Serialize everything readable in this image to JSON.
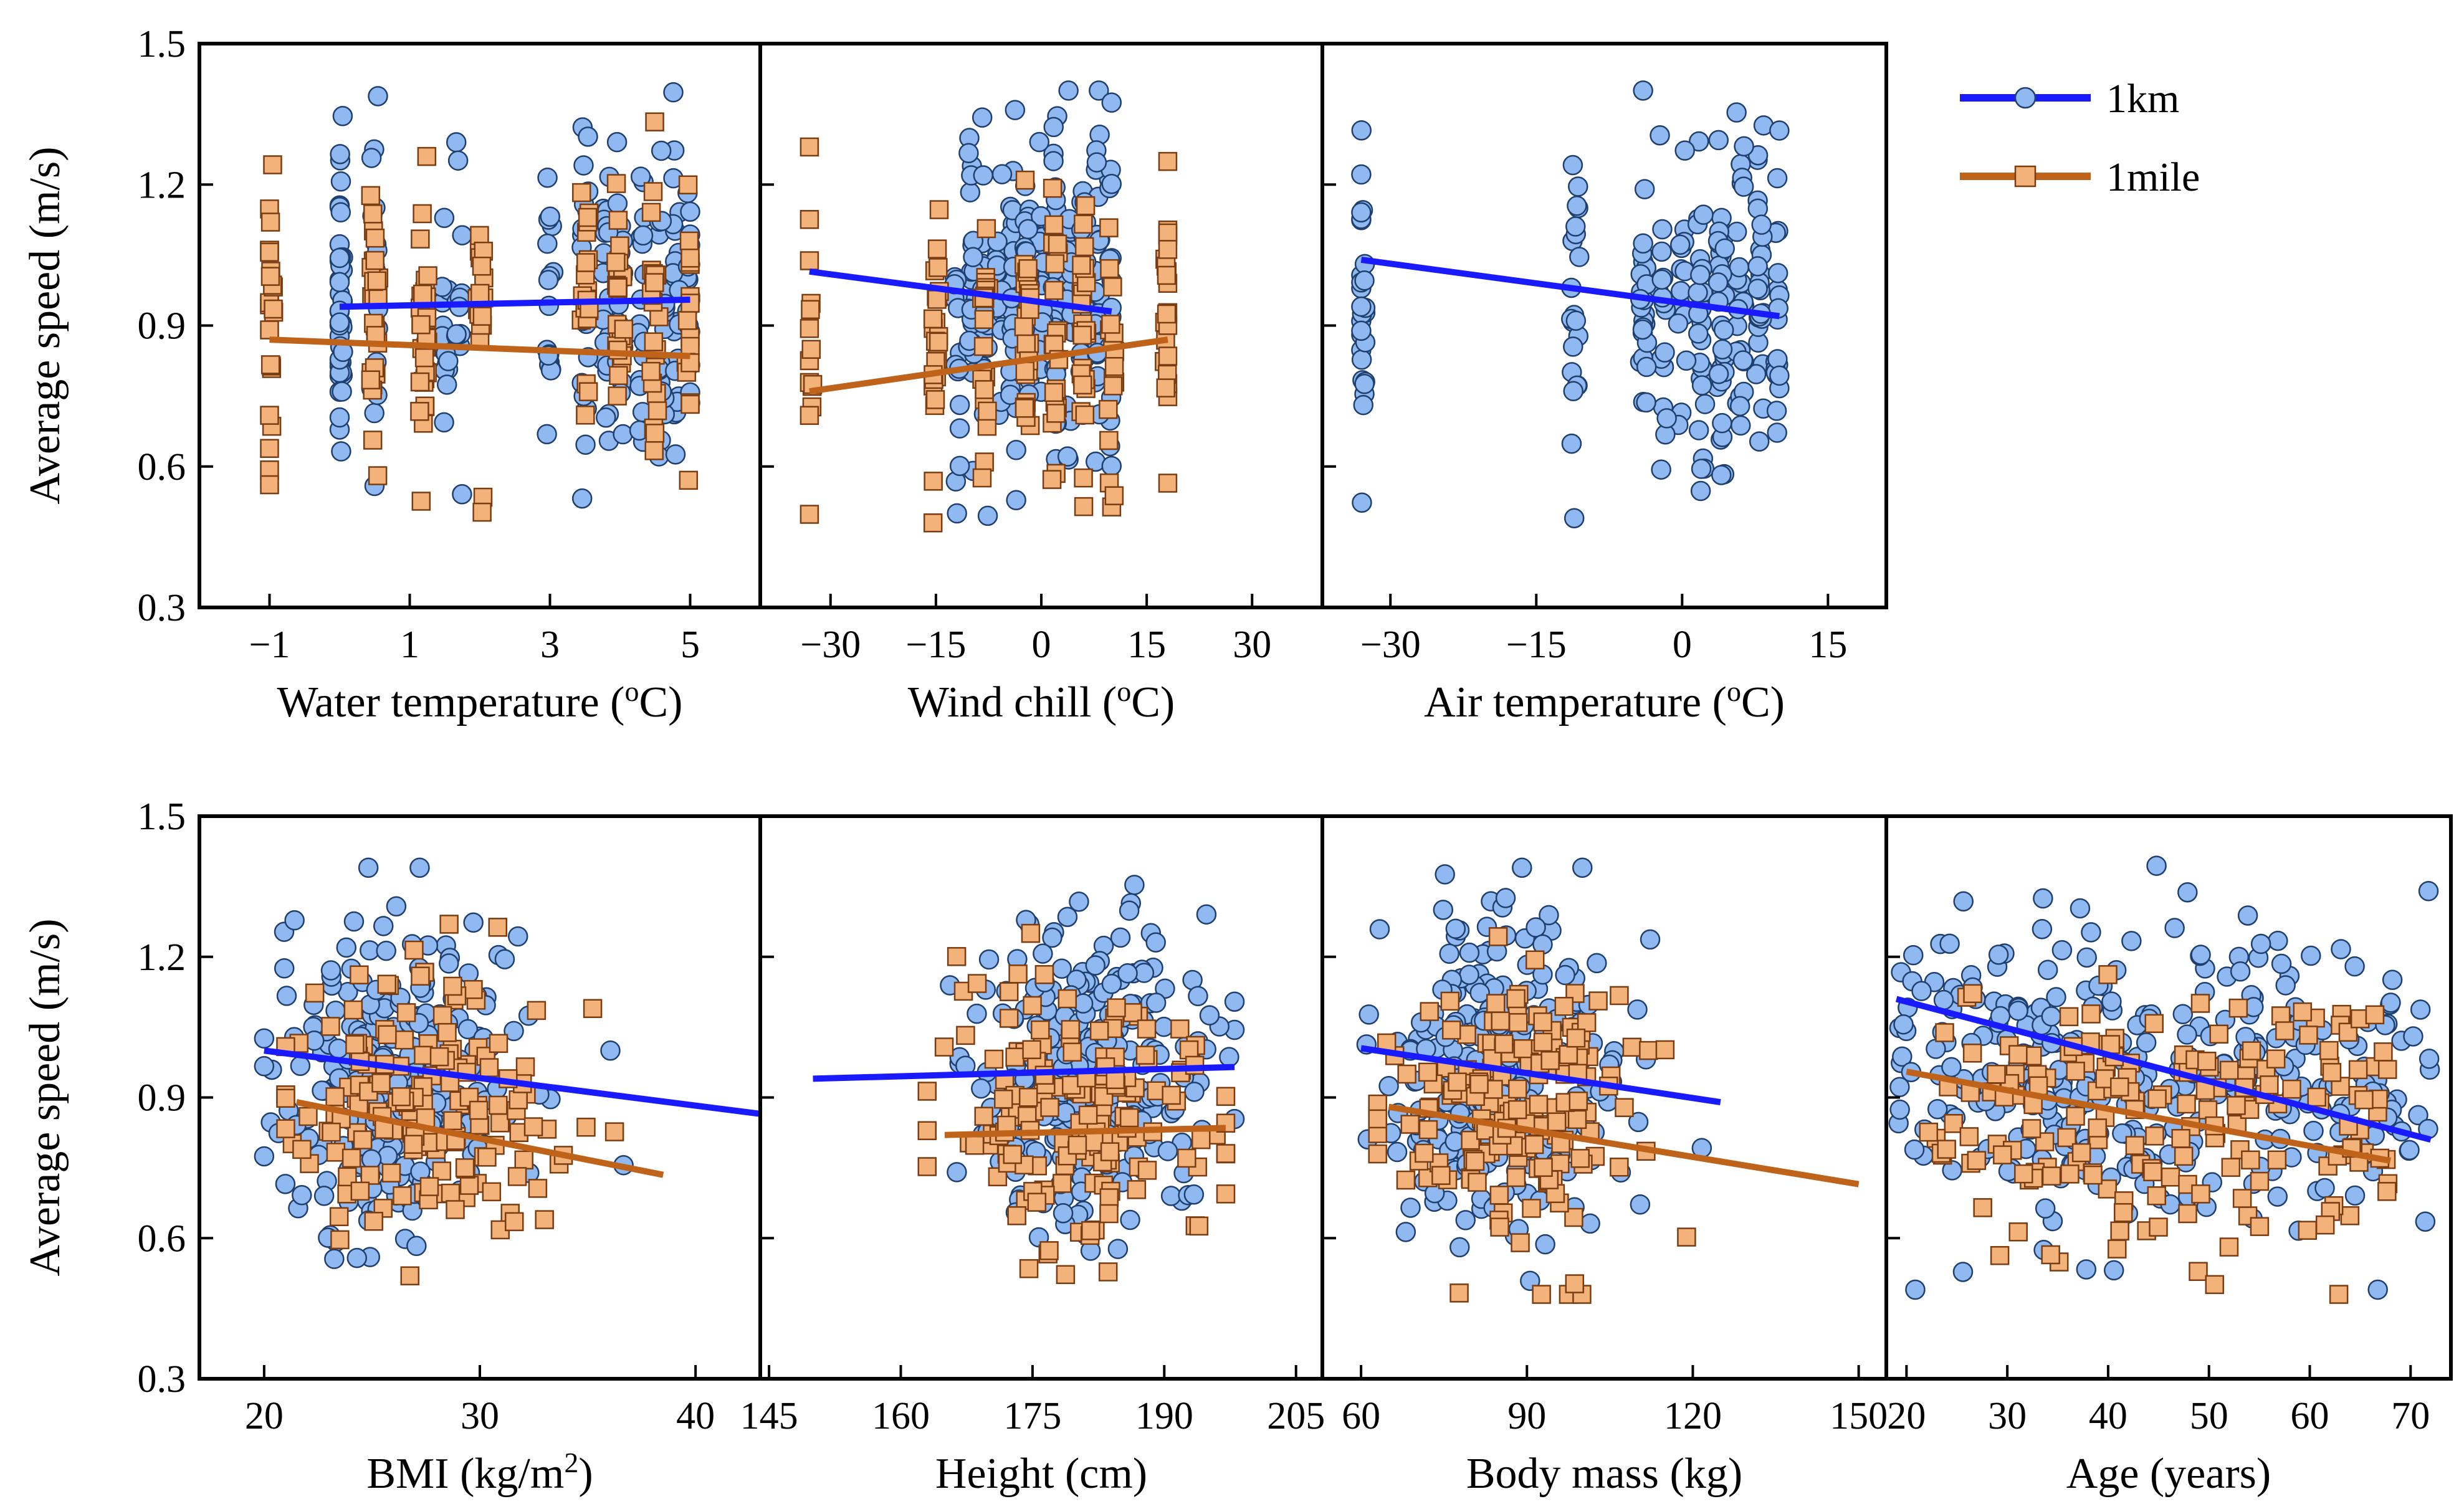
{
  "colors": {
    "km_line": "#1a1aff",
    "mile_line": "#c0631a",
    "km_marker": "#8fb9f0",
    "mile_marker": "#f3b27a"
  },
  "legend": {
    "items": [
      {
        "label": "1km",
        "marker": "circle",
        "color": "#1a1aff"
      },
      {
        "label": "1mile",
        "marker": "square",
        "color": "#c0631a"
      }
    ]
  },
  "chart_data": [
    {
      "type": "scatter",
      "xlabel_main": "Water temperature (",
      "xlabel_sup": "o",
      "xlabel_tail": "C)",
      "ylabel": "Average speed (m/s)",
      "show_ylabel": true,
      "xlim": [
        -2.0,
        6.0
      ],
      "ylim": [
        0.3,
        1.5
      ],
      "xticks": [
        -1,
        1,
        3,
        5
      ],
      "xtick_labels": [
        "−1",
        "1",
        "3",
        "5"
      ],
      "yticks": [
        0.3,
        0.6,
        0.9,
        1.2,
        1.5
      ],
      "ytick_labels": [
        "0.3",
        "0.6",
        "0.9",
        "1.2",
        "1.5"
      ],
      "trend": {
        "km": [
          [
            0.0,
            0.94
          ],
          [
            5.0,
            0.955
          ]
        ],
        "mile": [
          [
            -1.0,
            0.87
          ],
          [
            5.0,
            0.835
          ]
        ]
      },
      "scatter": {
        "km": {
          "x_columns": [
            0,
            0,
            0.5,
            1.5,
            1.7,
            3.0,
            3.5,
            3.8,
            4.0,
            4.3,
            4.6,
            4.8,
            5.0
          ],
          "x_range": [
            0,
            5
          ],
          "y_range": [
            0.49,
            1.4
          ],
          "n": 260
        },
        "mile": {
          "x_columns": [
            -1.0,
            0.5,
            1.2,
            2.0,
            3.5,
            4.0,
            4.5,
            5.0
          ],
          "x_range": [
            -1,
            5
          ],
          "y_range": [
            0.48,
            1.36
          ],
          "n": 180
        }
      }
    },
    {
      "type": "scatter",
      "xlabel_main": "Wind chill (",
      "xlabel_sup": "o",
      "xlabel_tail": "C)",
      "ylabel": "",
      "show_ylabel": false,
      "xlim": [
        -40,
        40
      ],
      "ylim": [
        0.3,
        1.5
      ],
      "xticks": [
        -30,
        -15,
        0,
        15,
        30
      ],
      "xtick_labels": [
        "−30",
        "−15",
        "0",
        "15",
        "30"
      ],
      "yticks": [
        0.3,
        0.6,
        0.9,
        1.2,
        1.5
      ],
      "ytick_labels": [],
      "trend": {
        "km": [
          [
            -33,
            1.015
          ],
          [
            10,
            0.93
          ]
        ],
        "mile": [
          [
            -33,
            0.76
          ],
          [
            18,
            0.87
          ]
        ]
      },
      "scatter": {
        "km": {
          "x_columns": [
            -12,
            -10,
            -8,
            -6,
            -4,
            -2,
            0,
            2,
            4,
            6,
            8,
            10
          ],
          "x_range": [
            -33,
            10
          ],
          "y_range": [
            0.49,
            1.4
          ],
          "n": 260
        },
        "mile": {
          "x_columns": [
            -33,
            -15,
            -8,
            -2,
            2,
            6,
            10,
            18
          ],
          "x_range": [
            -33,
            18
          ],
          "y_range": [
            0.48,
            1.28
          ],
          "n": 170
        }
      }
    },
    {
      "type": "scatter",
      "xlabel_main": "Air temperature (",
      "xlabel_sup": "o",
      "xlabel_tail": "C)",
      "ylabel": "",
      "show_ylabel": false,
      "xlim": [
        -37,
        21
      ],
      "ylim": [
        0.3,
        1.5
      ],
      "xticks": [
        -30,
        -15,
        0,
        15
      ],
      "xtick_labels": [
        "−30",
        "−15",
        "0",
        "15"
      ],
      "yticks": [
        0.3,
        0.6,
        0.9,
        1.2,
        1.5
      ],
      "ytick_labels": [],
      "trend": {
        "km": [
          [
            -33,
            1.04
          ],
          [
            10,
            0.92
          ]
        ]
      },
      "scatter": {
        "km": {
          "x_columns": [
            -33,
            -11,
            -4,
            -2,
            0,
            2,
            4,
            6,
            8,
            10
          ],
          "x_range": [
            -33,
            10
          ],
          "y_range": [
            0.49,
            1.4
          ],
          "n": 230
        }
      }
    },
    {
      "type": "scatter",
      "xlabel_main": "BMI (kg/m",
      "xlabel_sup": "2",
      "xlabel_tail": ")",
      "ylabel": "Average speed (m/s)",
      "show_ylabel": true,
      "xlim": [
        17,
        43
      ],
      "ylim": [
        0.3,
        1.5
      ],
      "xticks": [
        20,
        30,
        40
      ],
      "xtick_labels": [
        "20",
        "30",
        "40"
      ],
      "yticks": [
        0.3,
        0.6,
        0.9,
        1.2,
        1.5
      ],
      "ytick_labels": [
        "0.3",
        "0.6",
        "0.9",
        "1.2",
        "1.5"
      ],
      "trend": {
        "km": [
          [
            20,
            1.0
          ],
          [
            43,
            0.865
          ]
        ],
        "mile": [
          [
            21.5,
            0.89
          ],
          [
            38.5,
            0.735
          ]
        ]
      },
      "scatter": {
        "km": {
          "cluster": [
            26,
            3.0
          ],
          "x_range": [
            20,
            42
          ],
          "y_range": [
            0.49,
            1.39
          ],
          "n": 280
        },
        "mile": {
          "cluster": [
            27,
            3.3
          ],
          "x_range": [
            21,
            38
          ],
          "y_range": [
            0.48,
            1.3
          ],
          "n": 160
        }
      }
    },
    {
      "type": "scatter",
      "xlabel_main": "Height (cm)",
      "xlabel_sup": "",
      "xlabel_tail": "",
      "ylabel": "",
      "show_ylabel": false,
      "xlim": [
        144,
        208
      ],
      "ylim": [
        0.3,
        1.5
      ],
      "xticks": [
        145,
        160,
        175,
        190,
        205
      ],
      "xtick_labels": [
        "145",
        "160",
        "175",
        "190",
        "205"
      ],
      "yticks": [
        0.3,
        0.6,
        0.9,
        1.2,
        1.5
      ],
      "ytick_labels": [],
      "trend": {
        "km": [
          [
            150,
            0.94
          ],
          [
            198,
            0.965
          ]
        ],
        "mile": [
          [
            165,
            0.82
          ],
          [
            197,
            0.835
          ]
        ]
      },
      "scatter": {
        "km": {
          "cluster": [
            181,
            6.5
          ],
          "x_range": [
            150,
            198
          ],
          "y_range": [
            0.49,
            1.39
          ],
          "n": 280
        },
        "mile": {
          "cluster": [
            180,
            7.5
          ],
          "x_range": [
            163,
            197
          ],
          "y_range": [
            0.48,
            1.25
          ],
          "n": 160
        }
      }
    },
    {
      "type": "scatter",
      "xlabel_main": "Body mass (kg)",
      "xlabel_sup": "",
      "xlabel_tail": "",
      "ylabel": "",
      "show_ylabel": false,
      "xlim": [
        53,
        155
      ],
      "ylim": [
        0.3,
        1.5
      ],
      "xticks": [
        60,
        90,
        120,
        150
      ],
      "xtick_labels": [
        "60",
        "90",
        "120",
        "150"
      ],
      "yticks": [
        0.3,
        0.6,
        0.9,
        1.2,
        1.5
      ],
      "ytick_labels": [],
      "trend": {
        "km": [
          [
            60,
            1.005
          ],
          [
            125,
            0.89
          ]
        ],
        "mile": [
          [
            65,
            0.88
          ],
          [
            150,
            0.715
          ]
        ]
      },
      "scatter": {
        "km": {
          "cluster": [
            86,
            11
          ],
          "x_range": [
            60,
            125
          ],
          "y_range": [
            0.49,
            1.39
          ],
          "n": 280
        },
        "mile": {
          "cluster": [
            88,
            12
          ],
          "x_range": [
            63,
            150
          ],
          "y_range": [
            0.48,
            1.28
          ],
          "n": 170
        }
      }
    },
    {
      "type": "scatter",
      "xlabel_main": "Age (years)",
      "xlabel_sup": "",
      "xlabel_tail": "",
      "ylabel": "",
      "show_ylabel": false,
      "xlim": [
        18,
        74
      ],
      "ylim": [
        0.3,
        1.5
      ],
      "xticks": [
        20,
        30,
        40,
        50,
        60,
        70
      ],
      "xtick_labels": [
        "20",
        "30",
        "40",
        "50",
        "60",
        "70"
      ],
      "yticks": [
        0.3,
        0.6,
        0.9,
        1.2,
        1.5
      ],
      "ytick_labels": [],
      "trend": {
        "km": [
          [
            19,
            1.11
          ],
          [
            72,
            0.81
          ]
        ],
        "mile": [
          [
            20,
            0.955
          ],
          [
            68,
            0.765
          ]
        ]
      },
      "scatter": {
        "km": {
          "uniform": true,
          "x_range": [
            19,
            72
          ],
          "y_range": [
            0.49,
            1.4
          ],
          "n": 330
        },
        "mile": {
          "uniform": true,
          "x_range": [
            20,
            68
          ],
          "y_range": [
            0.48,
            1.22
          ],
          "n": 190
        }
      }
    }
  ]
}
